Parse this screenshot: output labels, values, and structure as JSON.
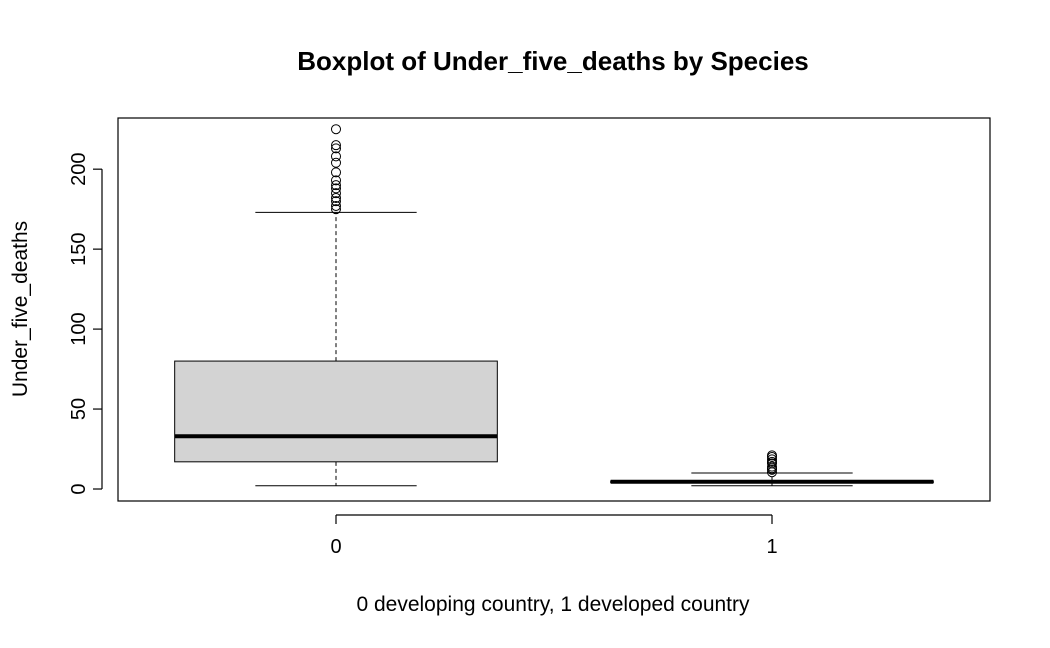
{
  "chart_data": {
    "type": "boxplot",
    "title": "Boxplot of Under_five_deaths by Species",
    "xlabel": "0 developing country, 1 developed country",
    "ylabel": "Under_five_deaths",
    "ylim": [
      -7.5,
      232
    ],
    "yticks": [
      0,
      50,
      100,
      150,
      200
    ],
    "categories": [
      "0",
      "1"
    ],
    "grid": false,
    "legend": "none",
    "box_fill": "#d3d3d3",
    "boxes": [
      {
        "category": "0",
        "whisker_low": 2,
        "q1": 17,
        "median": 33,
        "q3": 80,
        "whisker_high": 173,
        "outliers": [
          175,
          177,
          180,
          182,
          185,
          188,
          190,
          193,
          198,
          204,
          208,
          213,
          215,
          225
        ]
      },
      {
        "category": "1",
        "whisker_low": 2,
        "q1": 4,
        "median": 4.5,
        "q3": 5,
        "whisker_high": 10,
        "outliers": [
          10.5,
          12,
          13,
          14,
          16,
          17,
          18.5,
          20,
          21
        ]
      }
    ]
  }
}
